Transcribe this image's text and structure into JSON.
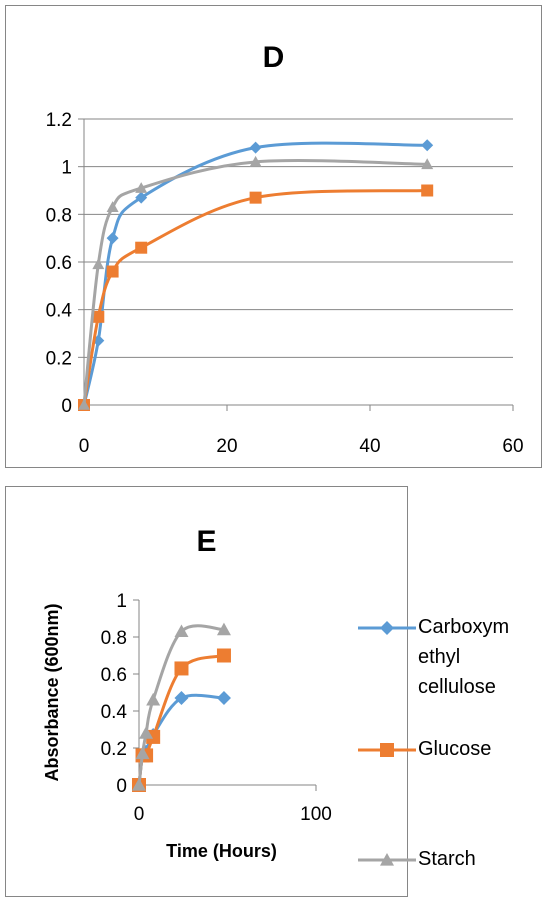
{
  "colors": {
    "carboxymethyl_cellulose": "#5B9BD5",
    "glucose": "#ED7D31",
    "starch": "#A5A5A5",
    "gridline": "#868686",
    "axis": "#868686"
  },
  "chart_data": [
    {
      "type": "line",
      "title": "D",
      "xlabel": "",
      "ylabel": "",
      "xlim": [
        0,
        60
      ],
      "ylim": [
        0,
        1.2
      ],
      "x_ticks": [
        "0",
        "20",
        "40",
        "60"
      ],
      "y_ticks": [
        "0",
        "0.2",
        "0.4",
        "0.6",
        "0.8",
        "1",
        "1.2"
      ],
      "grid": true,
      "legend": "none",
      "smooth": true,
      "series": [
        {
          "key": "carboxymethyl_cellulose",
          "marker": "diamond",
          "x": [
            0,
            2,
            4,
            8,
            24,
            48
          ],
          "y": [
            0,
            0.27,
            0.7,
            0.87,
            1.08,
            1.09
          ]
        },
        {
          "key": "glucose",
          "marker": "square",
          "x": [
            0,
            2,
            4,
            8,
            24,
            48
          ],
          "y": [
            0,
            0.37,
            0.56,
            0.66,
            0.87,
            0.9
          ]
        },
        {
          "key": "starch",
          "marker": "triangle",
          "x": [
            0,
            2,
            4,
            8,
            24,
            48
          ],
          "y": [
            0,
            0.59,
            0.83,
            0.91,
            1.02,
            1.01
          ]
        }
      ]
    },
    {
      "type": "line",
      "title": "E",
      "xlabel": "Time (Hours)",
      "ylabel": "Absorbance (600nm)",
      "xlim": [
        0,
        100
      ],
      "ylim": [
        0,
        1
      ],
      "x_ticks": [
        "0",
        "100"
      ],
      "y_ticks": [
        "0",
        "0.2",
        "0.4",
        "0.6",
        "0.8",
        "1"
      ],
      "grid": false,
      "legend": "right",
      "smooth": true,
      "series": [
        {
          "key": "carboxymethyl_cellulose",
          "name": "Carboxymethyl cellulose",
          "marker": "diamond",
          "x": [
            0,
            2,
            4,
            8,
            24,
            48
          ],
          "y": [
            0,
            0.16,
            0.18,
            0.27,
            0.47,
            0.47
          ]
        },
        {
          "key": "glucose",
          "name": "Glucose",
          "marker": "square",
          "x": [
            0,
            2,
            4,
            8,
            24,
            48
          ],
          "y": [
            0,
            0.16,
            0.16,
            0.26,
            0.63,
            0.7
          ]
        },
        {
          "key": "starch",
          "name": "Starch",
          "marker": "triangle",
          "x": [
            0,
            2,
            4,
            8,
            24,
            48
          ],
          "y": [
            0,
            0.17,
            0.28,
            0.46,
            0.83,
            0.84
          ]
        }
      ]
    }
  ],
  "legend_e": [
    {
      "key": "carboxymethyl_cellulose",
      "marker": "diamond",
      "lines": [
        "Carboxym",
        "ethyl",
        "cellulose"
      ]
    },
    {
      "key": "glucose",
      "marker": "square",
      "lines": [
        "Glucose"
      ]
    },
    {
      "key": "starch",
      "marker": "triangle",
      "lines": [
        "Starch"
      ]
    }
  ]
}
